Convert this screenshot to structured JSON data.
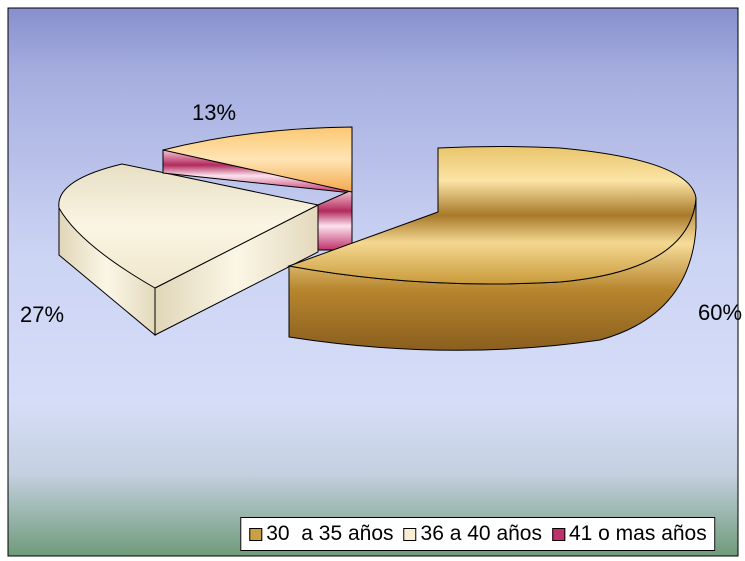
{
  "chart_data": {
    "type": "pie",
    "style": "3d-exploded",
    "categories": [
      "30  a 35 años",
      "36 a 40 años",
      "41 o mas años"
    ],
    "values": [
      60,
      27,
      13
    ],
    "value_labels": [
      "60%",
      "27%",
      "13%"
    ],
    "colors": {
      "30  a 35 años": "#c9a042",
      "36 a 40 años": "#f7eed4",
      "41 o mas años": "#c0306a"
    },
    "secondary_colors": {
      "41 o mas años": "#f5b45a"
    },
    "legend_position": "bottom",
    "background_gradient": [
      "#8a93cf",
      "#d6dcf7",
      "#6e9a78"
    ]
  }
}
